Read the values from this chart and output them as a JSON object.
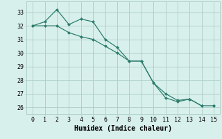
{
  "x": [
    0,
    1,
    2,
    3,
    4,
    5,
    6,
    7,
    8,
    9,
    10,
    11,
    12,
    13,
    14,
    15
  ],
  "line1": [
    32.0,
    32.3,
    33.2,
    32.1,
    32.5,
    32.3,
    31.0,
    30.4,
    29.4,
    29.4,
    27.8,
    26.7,
    26.4,
    26.6,
    26.1,
    26.1
  ],
  "line2": [
    32.0,
    32.0,
    32.0,
    31.5,
    31.2,
    31.0,
    30.5,
    30.0,
    29.4,
    29.4,
    27.8,
    27.0,
    26.5,
    26.6,
    26.1,
    26.1
  ],
  "line_color": "#2e7d6e",
  "bg_color": "#d8f0ec",
  "grid_color": "#b0cfc8",
  "xlabel": "Humidex (Indice chaleur)",
  "ylim": [
    25.5,
    33.8
  ],
  "xlim": [
    -0.5,
    15.5
  ],
  "yticks": [
    26,
    27,
    28,
    29,
    30,
    31,
    32,
    33
  ],
  "xticks": [
    0,
    1,
    2,
    3,
    4,
    5,
    6,
    7,
    8,
    9,
    10,
    11,
    12,
    13,
    14,
    15
  ],
  "tick_fontsize": 6,
  "xlabel_fontsize": 7
}
